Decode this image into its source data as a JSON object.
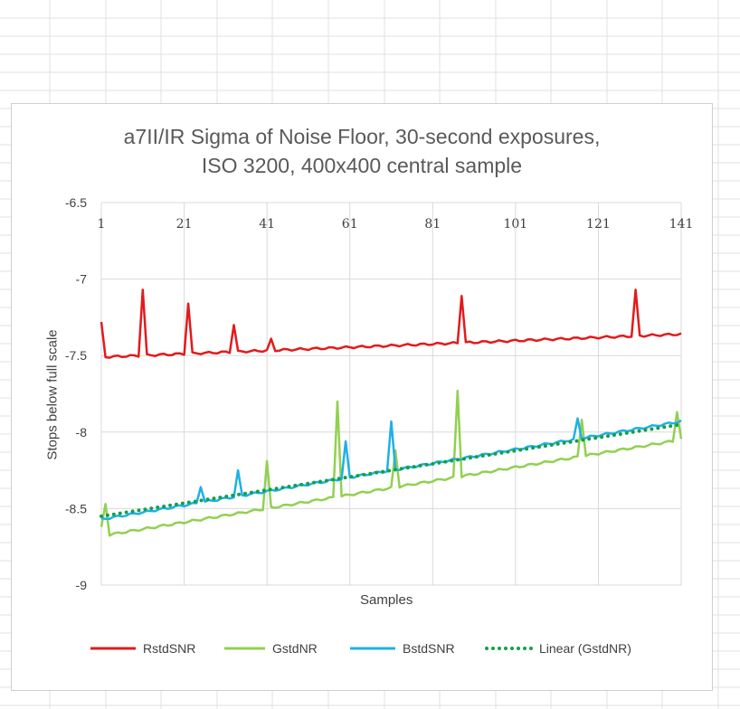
{
  "chart_data": {
    "type": "line",
    "title_lines": [
      "a7II/IR Sigma of Noise Floor, 30-second exposures,",
      "ISO 3200, 400x400 central sample"
    ],
    "xlabel": "Samples",
    "ylabel": "Stops below full scale",
    "xlim": [
      1,
      141
    ],
    "ylim": [
      -9,
      -6.5
    ],
    "x_ticks": [
      1,
      21,
      41,
      61,
      81,
      101,
      121,
      141
    ],
    "y_ticks": [
      -6.5,
      -7,
      -7.5,
      -8,
      -8.5,
      -9
    ],
    "grid": "major gridlines on both axes",
    "legend_position": "bottom",
    "series": [
      {
        "name": "RstdSNR",
        "color": "#e31a1c",
        "style": "solid",
        "base": {
          "x": [
            1,
            141
          ],
          "y": [
            -7.51,
            -7.36
          ]
        },
        "spikes": [
          [
            1,
            -7.28
          ],
          [
            11,
            -7.07
          ],
          [
            22,
            -7.16
          ],
          [
            33,
            -7.3
          ],
          [
            42,
            -7.39
          ],
          [
            88,
            -7.11
          ],
          [
            130,
            -7.07
          ]
        ]
      },
      {
        "name": "GstdNR",
        "color": "#92d050",
        "style": "solid",
        "base": {
          "x": [
            3,
            141
          ],
          "y": [
            -8.67,
            -8.05
          ]
        },
        "spikes": [
          [
            1,
            -8.62
          ],
          [
            2,
            -8.47
          ],
          [
            41,
            -8.19
          ],
          [
            58,
            -7.8
          ],
          [
            72,
            -8.12
          ],
          [
            87,
            -7.73
          ],
          [
            117,
            -7.92
          ],
          [
            140,
            -7.87
          ]
        ]
      },
      {
        "name": "BstdSNR",
        "color": "#1fb0e6",
        "style": "solid",
        "base": {
          "x": [
            1,
            141
          ],
          "y": [
            -8.57,
            -7.93
          ]
        },
        "spikes": [
          [
            25,
            -8.36
          ],
          [
            34,
            -8.25
          ],
          [
            60,
            -8.06
          ],
          [
            71,
            -7.93
          ],
          [
            116,
            -7.91
          ]
        ]
      },
      {
        "name": "Linear (GstdNR)",
        "color": "#14a048",
        "style": "dotted",
        "points": {
          "x": [
            1,
            141
          ],
          "y": [
            -8.55,
            -7.95
          ]
        }
      }
    ]
  }
}
